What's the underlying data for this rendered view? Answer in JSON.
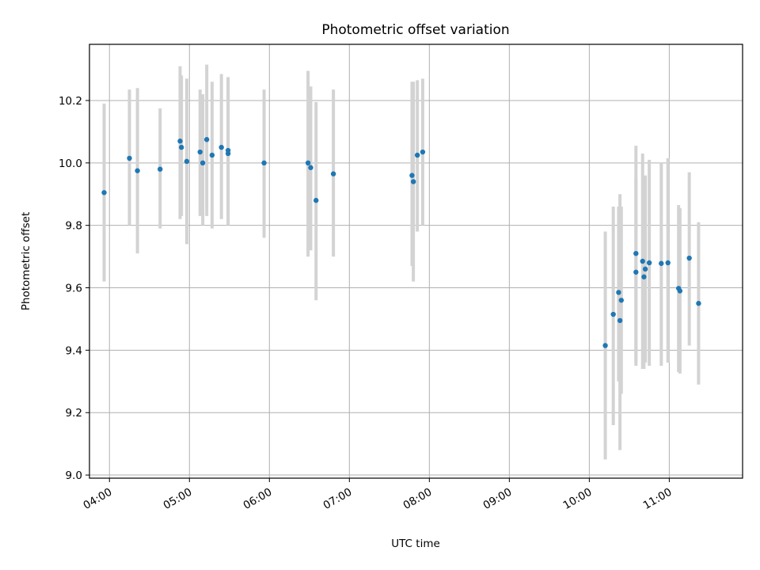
{
  "chart_data": {
    "type": "scatter",
    "title": "Photometric offset variation",
    "xlabel": "UTC time",
    "ylabel": "Photometric offset",
    "x_unit": "UTC time (HH:MM)",
    "xlim": [
      "03:45",
      "11:55"
    ],
    "ylim": [
      8.99,
      10.38
    ],
    "x_ticks": [
      "04:00",
      "05:00",
      "06:00",
      "07:00",
      "08:00",
      "09:00",
      "10:00",
      "11:00"
    ],
    "y_ticks": [
      "9.0",
      "9.2",
      "9.4",
      "9.6",
      "9.8",
      "10.0",
      "10.2"
    ],
    "grid": true,
    "legend": "none",
    "colors": {
      "points": "#1f77b4",
      "error_bars": "#d3d3d3",
      "grid": "#b0b0b0"
    },
    "series": [
      {
        "points": [
          {
            "x": "03:56",
            "y": 9.905,
            "low": 9.62,
            "high": 10.19
          },
          {
            "x": "04:15",
            "y": 10.015,
            "low": 9.8,
            "high": 10.235
          },
          {
            "x": "04:21",
            "y": 9.975,
            "low": 9.71,
            "high": 10.24
          },
          {
            "x": "04:38",
            "y": 9.98,
            "low": 9.79,
            "high": 10.175
          },
          {
            "x": "04:53",
            "y": 10.07,
            "low": 9.82,
            "high": 10.31
          },
          {
            "x": "04:54",
            "y": 10.05,
            "low": 9.83,
            "high": 10.28
          },
          {
            "x": "04:58",
            "y": 10.005,
            "low": 9.74,
            "high": 10.27
          },
          {
            "x": "05:08",
            "y": 10.035,
            "low": 9.83,
            "high": 10.235
          },
          {
            "x": "05:10",
            "y": 10.0,
            "low": 9.8,
            "high": 10.22
          },
          {
            "x": "05:13",
            "y": 10.075,
            "low": 9.83,
            "high": 10.315
          },
          {
            "x": "05:17",
            "y": 10.025,
            "low": 9.79,
            "high": 10.26
          },
          {
            "x": "05:24",
            "y": 10.05,
            "low": 9.82,
            "high": 10.285
          },
          {
            "x": "05:29",
            "y": 10.03,
            "low": 9.8,
            "high": 10.275
          },
          {
            "x": "05:29",
            "y": 10.04,
            "low": 9.81,
            "high": 10.27
          },
          {
            "x": "05:56",
            "y": 10.0,
            "low": 9.76,
            "high": 10.235
          },
          {
            "x": "06:29",
            "y": 10.0,
            "low": 9.7,
            "high": 10.295
          },
          {
            "x": "06:31",
            "y": 9.985,
            "low": 9.72,
            "high": 10.245
          },
          {
            "x": "06:35",
            "y": 9.88,
            "low": 9.56,
            "high": 10.195
          },
          {
            "x": "06:48",
            "y": 9.965,
            "low": 9.7,
            "high": 10.235
          },
          {
            "x": "07:47",
            "y": 9.96,
            "low": 9.67,
            "high": 10.26
          },
          {
            "x": "07:48",
            "y": 9.94,
            "low": 9.62,
            "high": 10.26
          },
          {
            "x": "07:51",
            "y": 10.025,
            "low": 9.78,
            "high": 10.265
          },
          {
            "x": "07:55",
            "y": 10.035,
            "low": 9.8,
            "high": 10.27
          },
          {
            "x": "10:12",
            "y": 9.415,
            "low": 9.05,
            "high": 9.78
          },
          {
            "x": "10:18",
            "y": 9.515,
            "low": 9.16,
            "high": 9.86
          },
          {
            "x": "10:22",
            "y": 9.585,
            "low": 9.3,
            "high": 9.86
          },
          {
            "x": "10:23",
            "y": 9.495,
            "low": 9.08,
            "high": 9.9
          },
          {
            "x": "10:24",
            "y": 9.56,
            "low": 9.26,
            "high": 9.86
          },
          {
            "x": "10:35",
            "y": 9.65,
            "low": 9.35,
            "high": 9.95
          },
          {
            "x": "10:35",
            "y": 9.71,
            "low": 9.36,
            "high": 10.055
          },
          {
            "x": "10:40",
            "y": 9.685,
            "low": 9.34,
            "high": 10.03
          },
          {
            "x": "10:41",
            "y": 9.635,
            "low": 9.34,
            "high": 9.935
          },
          {
            "x": "10:42",
            "y": 9.66,
            "low": 9.36,
            "high": 9.96
          },
          {
            "x": "10:45",
            "y": 9.68,
            "low": 9.35,
            "high": 10.01
          },
          {
            "x": "10:54",
            "y": 9.678,
            "low": 9.35,
            "high": 10.0
          },
          {
            "x": "10:59",
            "y": 9.68,
            "low": 9.36,
            "high": 10.015
          },
          {
            "x": "11:07",
            "y": 9.598,
            "low": 9.33,
            "high": 9.865
          },
          {
            "x": "11:08",
            "y": 9.59,
            "low": 9.325,
            "high": 9.855
          },
          {
            "x": "11:15",
            "y": 9.695,
            "low": 9.415,
            "high": 9.97
          },
          {
            "x": "11:22",
            "y": 9.55,
            "low": 9.29,
            "high": 9.81
          }
        ]
      }
    ]
  }
}
